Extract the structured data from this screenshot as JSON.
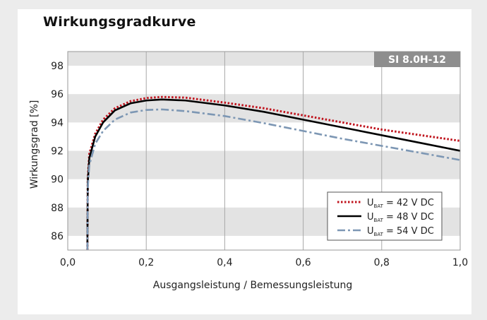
{
  "chart_data": {
    "type": "line",
    "title": "Wirkungsgradkurve",
    "badge": "SI 8.0H-12",
    "xlabel": "Ausgangsleistung / Bemessungsleistung",
    "ylabel": "Wirkungsgrad [%]",
    "xlim": [
      0,
      1.0
    ],
    "ylim": [
      85,
      99
    ],
    "xticks": [
      "0,0",
      "0,2",
      "0,4",
      "0,6",
      "0,8",
      "1,0"
    ],
    "yticks": [
      "86",
      "88",
      "90",
      "92",
      "94",
      "96",
      "98"
    ],
    "legend_position": "bottom-right",
    "series": [
      {
        "name_main": "U",
        "name_sub": "BAT",
        "name_rest": " = 42 V DC",
        "color": "#c0141e",
        "style": "dotted",
        "points": [
          [
            0.05,
            85
          ],
          [
            0.051,
            90
          ],
          [
            0.055,
            91.8
          ],
          [
            0.07,
            93.2
          ],
          [
            0.09,
            94.2
          ],
          [
            0.12,
            95.0
          ],
          [
            0.16,
            95.5
          ],
          [
            0.2,
            95.72
          ],
          [
            0.24,
            95.8
          ],
          [
            0.3,
            95.75
          ],
          [
            0.4,
            95.4
          ],
          [
            0.5,
            95.0
          ],
          [
            0.6,
            94.5
          ],
          [
            0.7,
            94.0
          ],
          [
            0.8,
            93.5
          ],
          [
            0.9,
            93.1
          ],
          [
            1.0,
            92.7
          ]
        ]
      },
      {
        "name_main": "U",
        "name_sub": "BAT",
        "name_rest": " = 48 V DC",
        "color": "#000000",
        "style": "solid",
        "points": [
          [
            0.05,
            85
          ],
          [
            0.051,
            89.8
          ],
          [
            0.055,
            91.5
          ],
          [
            0.07,
            93.0
          ],
          [
            0.09,
            94.0
          ],
          [
            0.12,
            94.85
          ],
          [
            0.16,
            95.35
          ],
          [
            0.2,
            95.55
          ],
          [
            0.24,
            95.62
          ],
          [
            0.3,
            95.55
          ],
          [
            0.4,
            95.2
          ],
          [
            0.5,
            94.75
          ],
          [
            0.6,
            94.2
          ],
          [
            0.7,
            93.65
          ],
          [
            0.8,
            93.1
          ],
          [
            0.9,
            92.55
          ],
          [
            1.0,
            92.0
          ]
        ]
      },
      {
        "name_main": "U",
        "name_sub": "BAT",
        "name_rest": " = 54 V DC",
        "color": "#7d97b4",
        "style": "dashdot",
        "points": [
          [
            0.05,
            85
          ],
          [
            0.051,
            89.4
          ],
          [
            0.055,
            91.0
          ],
          [
            0.07,
            92.5
          ],
          [
            0.09,
            93.4
          ],
          [
            0.12,
            94.2
          ],
          [
            0.16,
            94.7
          ],
          [
            0.2,
            94.88
          ],
          [
            0.24,
            94.92
          ],
          [
            0.3,
            94.8
          ],
          [
            0.4,
            94.45
          ],
          [
            0.5,
            93.95
          ],
          [
            0.6,
            93.4
          ],
          [
            0.7,
            92.85
          ],
          [
            0.8,
            92.35
          ],
          [
            0.9,
            91.85
          ],
          [
            1.0,
            91.35
          ]
        ]
      }
    ]
  }
}
